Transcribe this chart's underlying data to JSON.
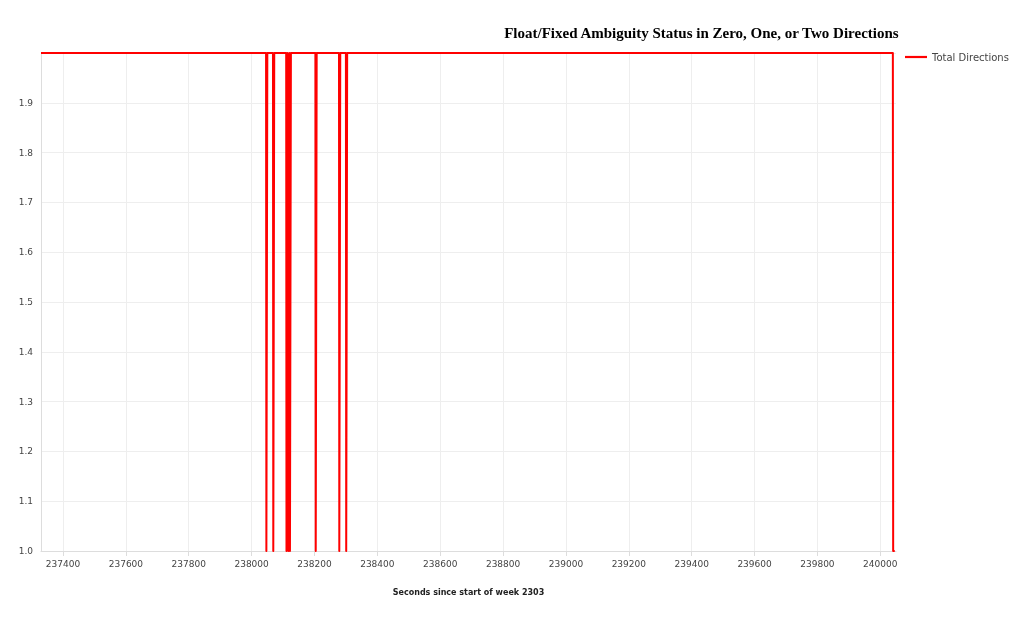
{
  "chart_data": {
    "type": "line",
    "title": "Float/Fixed Ambiguity Status in Zero, One, or Two Directions",
    "xlabel": "Seconds since start of week 2303",
    "x": [
      237330,
      238046,
      238047,
      238049,
      238050,
      238068,
      238069,
      238071,
      238072,
      238110,
      238111,
      238113,
      238114,
      238116,
      238117,
      238119,
      238120,
      238121,
      238122,
      238124,
      238125,
      238203,
      238204,
      238206,
      238207,
      238278,
      238279,
      238281,
      238282,
      238300,
      238301,
      238303,
      238304,
      240040,
      240041,
      240046
    ],
    "series": [
      {
        "name": "Total Directions",
        "color": "#ff0000",
        "values": [
          2,
          2,
          1,
          1,
          2,
          2,
          1,
          1,
          2,
          2,
          1,
          1,
          2,
          2,
          1,
          1,
          2,
          2,
          1,
          1,
          2,
          2,
          1,
          1,
          2,
          2,
          1,
          1,
          2,
          2,
          1,
          1,
          2,
          2,
          1,
          1
        ]
      }
    ],
    "xlim": [
      237330,
      240050
    ],
    "xticks": [
      237400,
      237600,
      237800,
      238000,
      238200,
      238400,
      238600,
      238800,
      239000,
      239200,
      239400,
      239600,
      239800,
      240000
    ],
    "ylim": [
      1,
      2
    ],
    "yticks": [
      {
        "value": 1,
        "label": "1.0"
      },
      1.1,
      1.2,
      1.3,
      1.4,
      1.5,
      1.6,
      1.7,
      1.8,
      1.9,
      {
        "value": 2,
        "label": null
      }
    ],
    "grid": true,
    "legend": "top right",
    "marker": "none",
    "line_style": "solid"
  }
}
